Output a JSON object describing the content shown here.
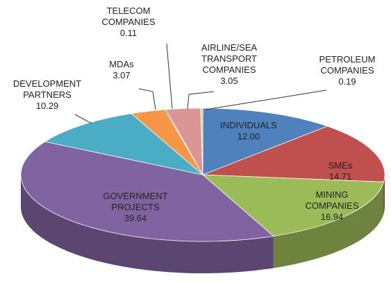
{
  "chart_data": {
    "type": "pie3d",
    "categories": [
      "INDIVIDUALS",
      "SMEs",
      "MINING COMPANIES",
      "GOVERNMENT PROJECTS",
      "DEVELOPMENT PARTNERS",
      "MDAs",
      "TELECOM COMPANIES",
      "AIRLINE/SEA TRANSPORT COMPANIES",
      "PETROLEUM COMPANIES"
    ],
    "values": [
      12,
      14.71,
      16.94,
      39.64,
      10.29,
      3.07,
      0.11,
      3.05,
      0.19
    ],
    "value_labels": [
      "12.00",
      "14.71",
      "16.94",
      "39.64",
      "10.29",
      "3.07",
      "0.11",
      "3.05",
      "0.19"
    ],
    "colors": [
      "#4f81bd",
      "#c0504d",
      "#9bbb59",
      "#8064a2",
      "#4bacc6",
      "#f79646",
      "#2c4d75",
      "#d99694",
      "#c3d69b"
    ]
  }
}
